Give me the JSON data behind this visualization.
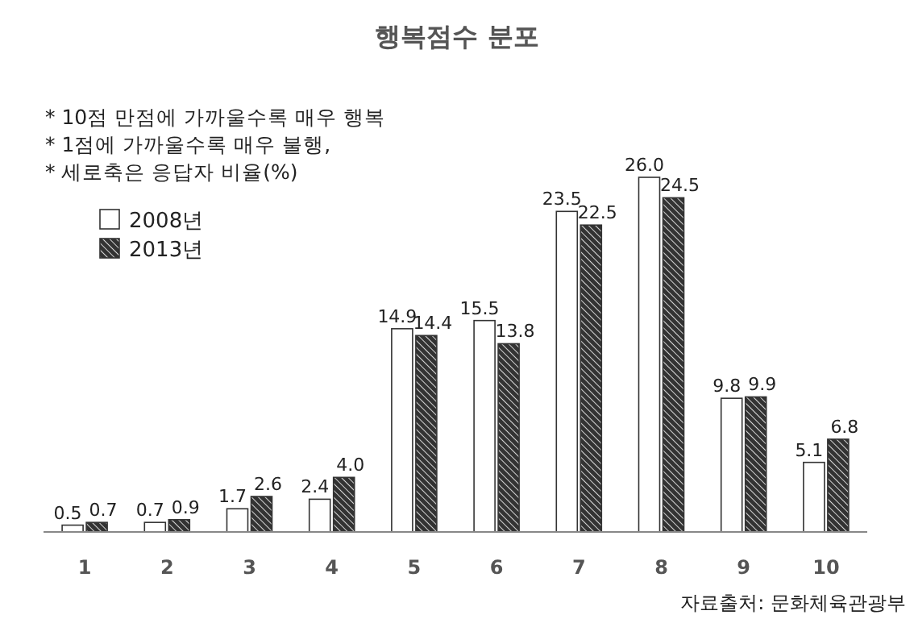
{
  "chart_data": {
    "type": "bar",
    "title": "행복점수 분포",
    "categories": [
      "1",
      "2",
      "3",
      "4",
      "5",
      "6",
      "7",
      "8",
      "9",
      "10"
    ],
    "series": [
      {
        "name": "2008년",
        "color": "#ffffff",
        "values": [
          0.5,
          0.7,
          1.7,
          2.4,
          14.9,
          15.5,
          23.5,
          26.0,
          9.8,
          5.1
        ],
        "value_labels": [
          "0.5",
          "0.7",
          "1.7",
          "2.4",
          "14.9",
          "15.5",
          "23.5",
          "26.0",
          "9.8",
          "5.1"
        ]
      },
      {
        "name": "2013년",
        "color": "#333333",
        "values": [
          0.7,
          0.9,
          2.6,
          4.0,
          14.4,
          13.8,
          22.5,
          24.5,
          9.9,
          6.8
        ],
        "value_labels": [
          "0.7",
          "0.9",
          "2.6",
          "4.0",
          "14.4",
          "13.8",
          "22.5",
          "24.5",
          "9.9",
          "6.8"
        ]
      }
    ],
    "legend": "top left",
    "annotations": [
      "* 10점 만점에 가까울수록 매우 행복",
      "* 1점에 가까울수록 매우 불행,",
      "* 세로축은 응답자 비율(%)",
      "자료출처: 문화체육관광부"
    ]
  }
}
